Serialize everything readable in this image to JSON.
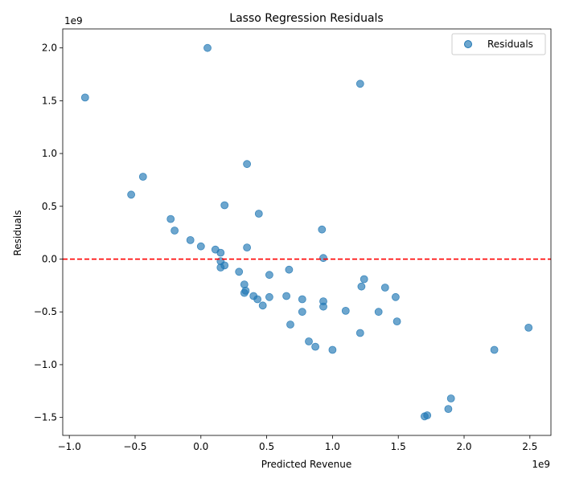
{
  "chart_data": {
    "type": "scatter",
    "title": "Lasso Regression Residuals",
    "xlabel": "Predicted Revenue",
    "ylabel": "Residuals",
    "x_scale_label": "1e9",
    "y_scale_label": "1e9",
    "xlim": [
      -1.05,
      2.66
    ],
    "ylim": [
      -1.67,
      2.18
    ],
    "x_ticks": [
      -1.0,
      -0.5,
      0.0,
      0.5,
      1.0,
      1.5,
      2.0,
      2.5
    ],
    "x_tick_labels": [
      "−1.0",
      "−0.5",
      "0.0",
      "0.5",
      "1.0",
      "1.5",
      "2.0",
      "2.5"
    ],
    "y_ticks": [
      -1.5,
      -1.0,
      -0.5,
      0.0,
      0.5,
      1.0,
      1.5,
      2.0
    ],
    "y_tick_labels": [
      "−1.5",
      "−1.0",
      "−0.5",
      "0.0",
      "0.5",
      "1.0",
      "1.5",
      "2.0"
    ],
    "reference_line": {
      "y": 0,
      "color": "#ff0000",
      "style": "dashed"
    },
    "grid": false,
    "legend": {
      "position": "top-right",
      "entries": [
        "Residuals"
      ]
    },
    "series": [
      {
        "name": "Residuals",
        "color": "#1f77b4",
        "x": [
          -0.88,
          0.05,
          1.21,
          -0.44,
          -0.53,
          0.35,
          0.18,
          0.44,
          -0.23,
          0.92,
          -0.2,
          -0.08,
          0.0,
          0.11,
          0.15,
          0.35,
          0.93,
          0.15,
          0.18,
          0.15,
          0.29,
          0.67,
          0.52,
          1.24,
          0.33,
          1.22,
          1.4,
          0.34,
          0.33,
          0.4,
          0.43,
          0.52,
          0.65,
          0.77,
          0.93,
          1.48,
          0.47,
          0.93,
          0.77,
          1.1,
          1.35,
          1.49,
          0.68,
          1.21,
          0.82,
          0.87,
          1.0,
          2.23,
          2.49,
          1.9,
          1.88,
          1.72,
          1.7
        ],
        "y": [
          1.53,
          2.0,
          1.66,
          0.78,
          0.61,
          0.9,
          0.51,
          0.43,
          0.38,
          0.28,
          0.27,
          0.18,
          0.12,
          0.09,
          0.06,
          0.11,
          0.01,
          -0.02,
          -0.06,
          -0.08,
          -0.12,
          -0.1,
          -0.15,
          -0.19,
          -0.24,
          -0.26,
          -0.27,
          -0.3,
          -0.32,
          -0.35,
          -0.38,
          -0.36,
          -0.35,
          -0.38,
          -0.4,
          -0.36,
          -0.44,
          -0.45,
          -0.5,
          -0.49,
          -0.5,
          -0.59,
          -0.62,
          -0.7,
          -0.78,
          -0.83,
          -0.86,
          -0.86,
          -0.65,
          -1.32,
          -1.42,
          -1.48,
          -1.49
        ]
      }
    ]
  }
}
